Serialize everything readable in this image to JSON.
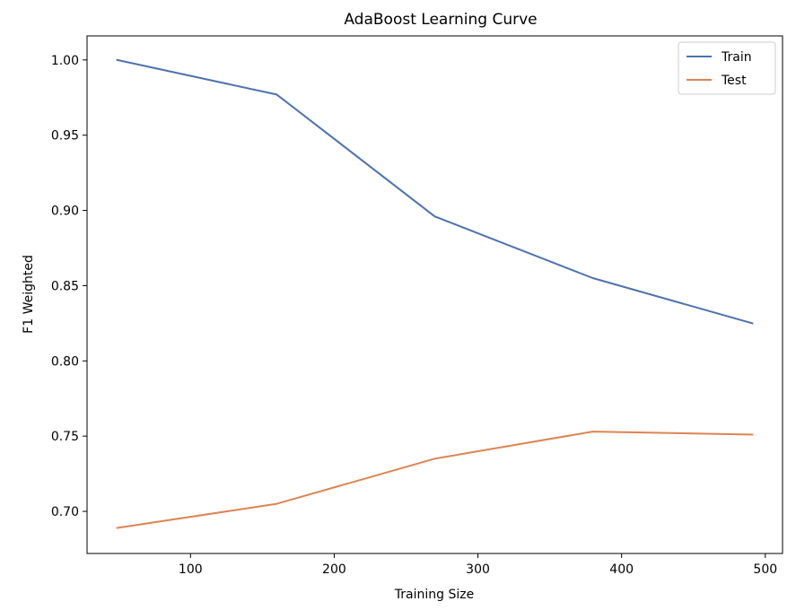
{
  "chart_data": {
    "type": "line",
    "title": "AdaBoost Learning Curve",
    "xlabel": "Training Size",
    "ylabel": "F1 Weighted",
    "x": [
      49,
      160,
      270,
      380,
      491
    ],
    "xlim": [
      28,
      512
    ],
    "ylim": [
      0.672,
      1.016
    ],
    "xticks": [
      100,
      200,
      300,
      400,
      500
    ],
    "yticks": [
      0.7,
      0.75,
      0.8,
      0.85,
      0.9,
      0.95,
      1.0
    ],
    "grid": false,
    "legend_position": "top-right",
    "series": [
      {
        "name": "Train",
        "color": "#4c72b0",
        "values": [
          1.0,
          0.977,
          0.896,
          0.855,
          0.825
        ]
      },
      {
        "name": "Test",
        "color": "#dd8452",
        "values": [
          0.689,
          0.705,
          0.735,
          0.753,
          0.751
        ]
      }
    ]
  }
}
